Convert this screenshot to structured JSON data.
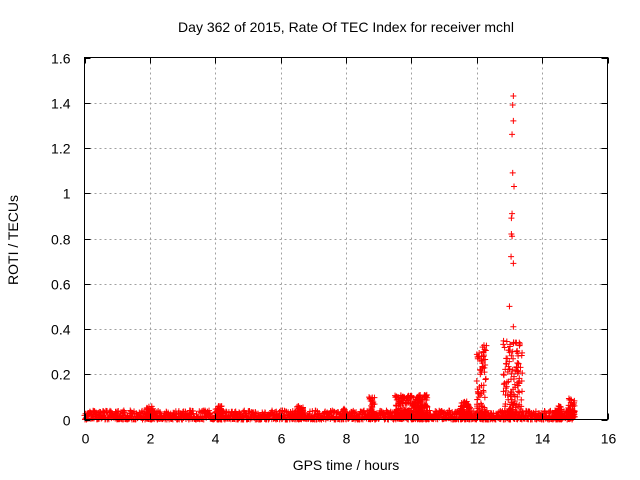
{
  "chart_data": {
    "type": "scatter",
    "title": "Day 362 of 2015, Rate Of TEC Index for receiver mchl",
    "xlabel": "GPS time / hours",
    "ylabel": "ROTI / TECUs",
    "xlim": [
      0,
      16
    ],
    "ylim": [
      0,
      1.6
    ],
    "x_ticks": [
      "0",
      "2",
      "4",
      "6",
      "8",
      "10",
      "12",
      "14",
      "16"
    ],
    "y_ticks": [
      "0",
      "0.2",
      "0.4",
      "0.6",
      "0.8",
      "1",
      "1.2",
      "1.4",
      "1.6"
    ],
    "grid": true,
    "marker": "plus",
    "colors": {
      "points": "#ff0000",
      "grid": "#a0a0a0",
      "axes": "#000000"
    },
    "series": [
      {
        "background": {
          "x_range": [
            0,
            15
          ],
          "y_range": [
            0,
            0.04
          ]
        },
        "bursts": [
          {
            "x_range": [
              1.9,
              2.1
            ],
            "y_max": 0.06
          },
          {
            "x_range": [
              4.0,
              4.2
            ],
            "y_max": 0.06
          },
          {
            "x_range": [
              6.5,
              6.7
            ],
            "y_max": 0.06
          },
          {
            "x_range": [
              7.9,
              8.0
            ],
            "y_max": 0.05
          },
          {
            "x_range": [
              8.7,
              8.9
            ],
            "y_max": 0.1
          },
          {
            "x_range": [
              9.5,
              10.5
            ],
            "y_max": 0.11
          },
          {
            "x_range": [
              11.5,
              11.8
            ],
            "y_max": 0.08
          },
          {
            "x_range": [
              12.0,
              12.3
            ],
            "y_max": 0.33
          },
          {
            "x_range": [
              12.8,
              13.4
            ],
            "y_max": 0.35
          },
          {
            "x_range": [
              14.4,
              14.6
            ],
            "y_max": 0.06
          },
          {
            "x_range": [
              14.8,
              15.0
            ],
            "y_max": 0.1
          }
        ],
        "spikes": [
          {
            "x": 13.12,
            "y": 1.43
          },
          {
            "x": 13.1,
            "y": 1.39
          },
          {
            "x": 13.12,
            "y": 1.32
          },
          {
            "x": 13.08,
            "y": 1.26
          },
          {
            "x": 13.1,
            "y": 1.09
          },
          {
            "x": 13.14,
            "y": 1.03
          },
          {
            "x": 13.08,
            "y": 0.91
          },
          {
            "x": 13.06,
            "y": 0.89
          },
          {
            "x": 13.06,
            "y": 0.82
          },
          {
            "x": 13.08,
            "y": 0.81
          },
          {
            "x": 13.05,
            "y": 0.72
          },
          {
            "x": 13.12,
            "y": 0.69
          },
          {
            "x": 13.0,
            "y": 0.5
          },
          {
            "x": 13.12,
            "y": 0.41
          },
          {
            "x": 13.18,
            "y": 0.34
          },
          {
            "x": 13.1,
            "y": 0.3
          },
          {
            "x": 13.22,
            "y": 0.23
          },
          {
            "x": 12.18,
            "y": 0.32
          },
          {
            "x": 12.2,
            "y": 0.3
          },
          {
            "x": 12.24,
            "y": 0.31
          },
          {
            "x": 12.15,
            "y": 0.26
          },
          {
            "x": 12.1,
            "y": 0.22
          },
          {
            "x": 12.0,
            "y": 0.17
          },
          {
            "x": 12.28,
            "y": 0.18
          },
          {
            "x": 12.9,
            "y": 0.27
          },
          {
            "x": 12.95,
            "y": 0.21
          },
          {
            "x": 12.85,
            "y": 0.16
          },
          {
            "x": 13.25,
            "y": 0.15
          },
          {
            "x": 13.3,
            "y": 0.12
          }
        ]
      }
    ]
  }
}
